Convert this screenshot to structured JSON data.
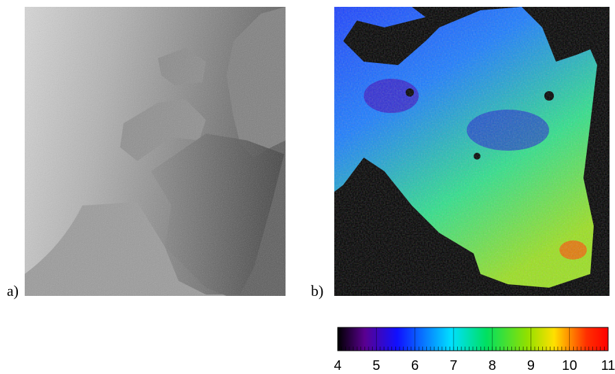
{
  "panels": [
    {
      "label": "a)"
    },
    {
      "label": "b)"
    }
  ],
  "colorbar": {
    "ticks": [
      4,
      5,
      6,
      7,
      8,
      9,
      10,
      11
    ]
  }
}
